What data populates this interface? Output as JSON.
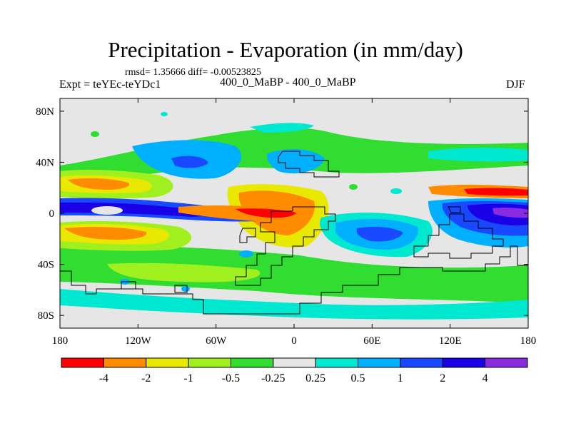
{
  "title": "Precipitation - Evaporation (in mm/day)",
  "stats": "rmsd= 1.35666 diff= -0.00523825",
  "experiment": "Expt = teYEc-teYDc1",
  "case": "400_0_MaBP - 400_0_MaBP",
  "season": "DJF",
  "axes": {
    "x_ticks": [
      {
        "value": -180,
        "label": "180"
      },
      {
        "value": -120,
        "label": "120W"
      },
      {
        "value": -60,
        "label": "60W"
      },
      {
        "value": 0,
        "label": "0"
      },
      {
        "value": 60,
        "label": "60E"
      },
      {
        "value": 120,
        "label": "120E"
      },
      {
        "value": 180,
        "label": "180"
      }
    ],
    "y_ticks": [
      {
        "value": 80,
        "label": "80N"
      },
      {
        "value": 40,
        "label": "40N"
      },
      {
        "value": 0,
        "label": "0"
      },
      {
        "value": -40,
        "label": "40S"
      },
      {
        "value": -80,
        "label": "80S"
      }
    ],
    "xlim": [
      -180,
      180
    ],
    "ylim": [
      -90,
      90
    ]
  },
  "colorbar": {
    "labels": [
      "-4",
      "-2",
      "-1",
      "-0.5",
      "-0.25",
      "0.25",
      "0.5",
      "1",
      "2",
      "4"
    ],
    "colors": [
      "#ff0000",
      "#ff8c00",
      "#e8e800",
      "#a0f020",
      "#30dd30",
      "#e6e6e6",
      "#00e8d0",
      "#00b0ff",
      "#1848ff",
      "#1a00e6",
      "#8a2be2"
    ]
  },
  "colors": {
    "background": "#e6e6e6"
  }
}
